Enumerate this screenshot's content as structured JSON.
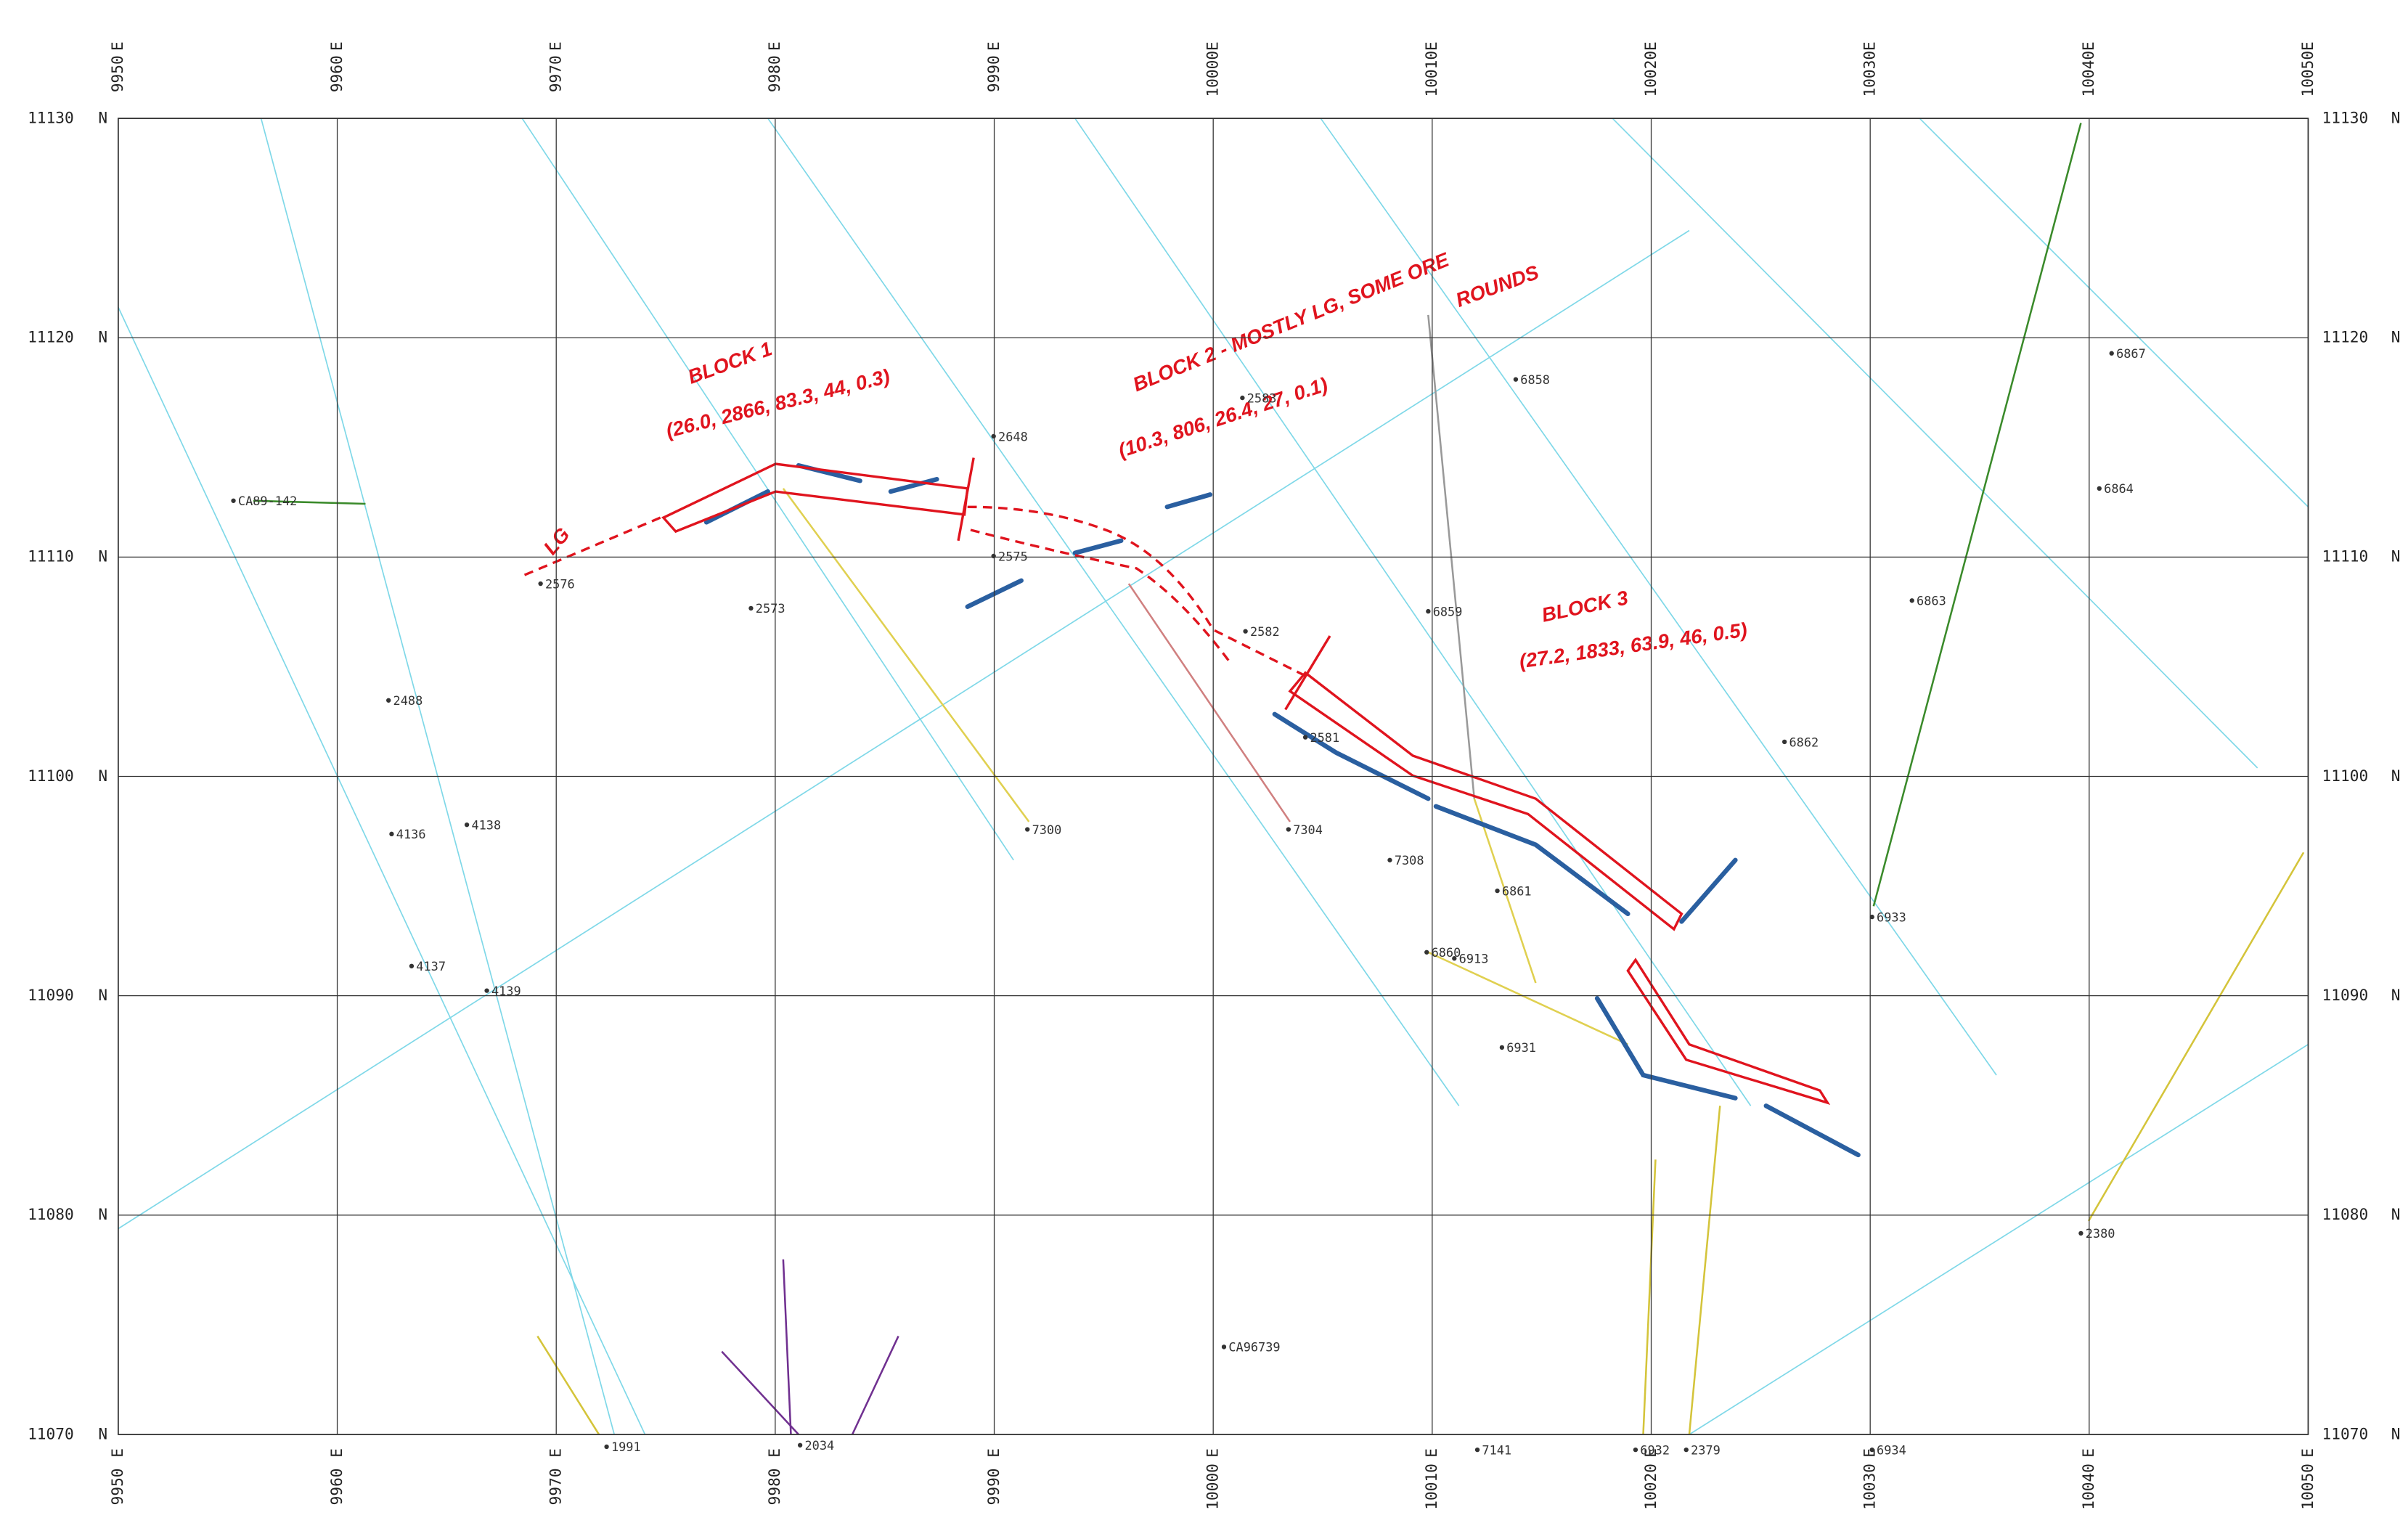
{
  "grid": {
    "eastings": [
      9950,
      9960,
      9970,
      9980,
      9990,
      10000,
      10010,
      10020,
      10030,
      10040,
      10050
    ],
    "northings": [
      11130,
      11120,
      11110,
      11100,
      11090,
      11080,
      11070
    ],
    "easting_unit": "E",
    "northing_unit": "N",
    "xlim": [
      9950,
      10050
    ],
    "ylim": [
      11070,
      11130
    ]
  },
  "annotations": {
    "block1": "BLOCK 1",
    "block1_values": "(26.0, 2866, 83.3, 44, 0.3)",
    "block2": "BLOCK 2 - MOSTLY LG, SOME ORE",
    "block2_cont": "ROUNDS",
    "block2_values": "(10.3, 806, 26.4, 27, 0.1)",
    "block3": "BLOCK 3",
    "block3_values": "(27.2, 1833, 63.9, 46, 0.5)",
    "lg": "LG"
  },
  "holes": [
    "CA89-142",
    "2488",
    "4136",
    "4137",
    "4139",
    "4138",
    "2576",
    "2573",
    "2648",
    "2575",
    "2583",
    "6858",
    "2582",
    "2581",
    "7300",
    "7304",
    "7308",
    "6859",
    "6862",
    "6863",
    "6933",
    "6867",
    "6864",
    "6931",
    "6861",
    "6860",
    "6913",
    "2380",
    "6932",
    "2379",
    "7141",
    "6934",
    "1991",
    "2034",
    "CA96739"
  ]
}
